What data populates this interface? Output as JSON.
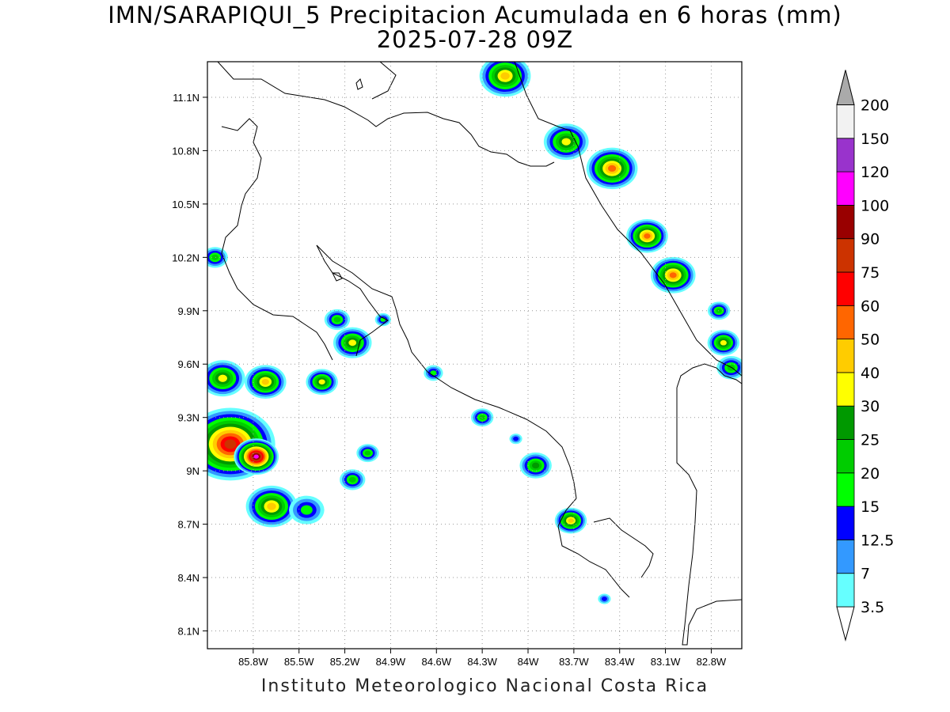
{
  "title": {
    "line1": "IMN/SARAPIQUI_5 Precipitacion Acumulada en 6 horas (mm)",
    "line2": "2025-07-28 09Z"
  },
  "footer": "Instituto Meteorologico Nacional Costa Rica",
  "map": {
    "lon_range": [
      -86.1,
      -82.6
    ],
    "lat_range": [
      8.0,
      11.3
    ],
    "x_ticks": [
      "85.8W",
      "85.5W",
      "85.2W",
      "84.9W",
      "84.6W",
      "84.3W",
      "84W",
      "83.7W",
      "83.4W",
      "83.1W",
      "82.8W"
    ],
    "x_tick_lons": [
      -85.8,
      -85.5,
      -85.2,
      -84.9,
      -84.6,
      -84.3,
      -84.0,
      -83.7,
      -83.4,
      -83.1,
      -82.8
    ],
    "y_ticks": [
      "11.1N",
      "10.8N",
      "10.5N",
      "10.2N",
      "9.9N",
      "9.6N",
      "9.3N",
      "9N",
      "8.7N",
      "8.4N",
      "8.1N"
    ],
    "y_tick_lats": [
      11.1,
      10.8,
      10.5,
      10.2,
      9.9,
      9.6,
      9.3,
      9.0,
      8.7,
      8.4,
      8.1
    ],
    "grid": true,
    "colorbar": {
      "levels": [
        "3.5",
        "7",
        "12.5",
        "15",
        "20",
        "25",
        "30",
        "40",
        "50",
        "60",
        "75",
        "90",
        "100",
        "120",
        "150",
        "200"
      ],
      "colors": [
        "#ffffff",
        "#66ffff",
        "#3399ff",
        "#0000ff",
        "#00ff00",
        "#00cc00",
        "#009900",
        "#ffff00",
        "#ffcc00",
        "#ff6600",
        "#ff0000",
        "#cc3300",
        "#990000",
        "#ff00ff",
        "#9933cc",
        "#f2f2f2",
        "#aaaaaa"
      ]
    },
    "rain_cells": [
      {
        "lon": -84.15,
        "lat": 11.22,
        "peak": 8,
        "size": 0.16
      },
      {
        "lon": -83.75,
        "lat": 10.85,
        "peak": 7,
        "size": 0.14
      },
      {
        "lon": -83.45,
        "lat": 10.7,
        "peak": 9,
        "size": 0.16
      },
      {
        "lon": -83.22,
        "lat": 10.32,
        "peak": 9,
        "size": 0.13
      },
      {
        "lon": -83.05,
        "lat": 10.1,
        "peak": 9,
        "size": 0.14
      },
      {
        "lon": -82.72,
        "lat": 9.72,
        "peak": 7,
        "size": 0.1
      },
      {
        "lon": -82.67,
        "lat": 9.58,
        "peak": 5,
        "size": 0.09
      },
      {
        "lon": -82.75,
        "lat": 9.9,
        "peak": 5,
        "size": 0.07
      },
      {
        "lon": -86.05,
        "lat": 10.2,
        "peak": 5,
        "size": 0.08
      },
      {
        "lon": -86.0,
        "lat": 9.52,
        "peak": 7,
        "size": 0.14
      },
      {
        "lon": -85.72,
        "lat": 9.5,
        "peak": 8,
        "size": 0.13
      },
      {
        "lon": -85.95,
        "lat": 9.15,
        "peak": 11,
        "size": 0.28
      },
      {
        "lon": -85.78,
        "lat": 9.08,
        "peak": 13,
        "size": 0.14
      },
      {
        "lon": -85.68,
        "lat": 8.8,
        "peak": 8,
        "size": 0.16
      },
      {
        "lon": -85.45,
        "lat": 8.78,
        "peak": 4,
        "size": 0.11
      },
      {
        "lon": -85.35,
        "lat": 9.5,
        "peak": 7,
        "size": 0.1
      },
      {
        "lon": -85.15,
        "lat": 9.72,
        "peak": 7,
        "size": 0.12
      },
      {
        "lon": -85.25,
        "lat": 9.85,
        "peak": 5,
        "size": 0.08
      },
      {
        "lon": -85.05,
        "lat": 9.1,
        "peak": 5,
        "size": 0.07
      },
      {
        "lon": -85.15,
        "lat": 8.95,
        "peak": 5,
        "size": 0.08
      },
      {
        "lon": -84.62,
        "lat": 9.55,
        "peak": 4,
        "size": 0.06
      },
      {
        "lon": -84.3,
        "lat": 9.3,
        "peak": 5,
        "size": 0.07
      },
      {
        "lon": -83.95,
        "lat": 9.03,
        "peak": 6,
        "size": 0.1
      },
      {
        "lon": -83.72,
        "lat": 8.72,
        "peak": 8,
        "size": 0.1
      },
      {
        "lon": -84.08,
        "lat": 9.18,
        "peak": 3,
        "size": 0.04
      },
      {
        "lon": -83.5,
        "lat": 8.28,
        "peak": 3,
        "size": 0.04
      },
      {
        "lon": -84.95,
        "lat": 9.85,
        "peak": 4,
        "size": 0.05
      }
    ]
  }
}
